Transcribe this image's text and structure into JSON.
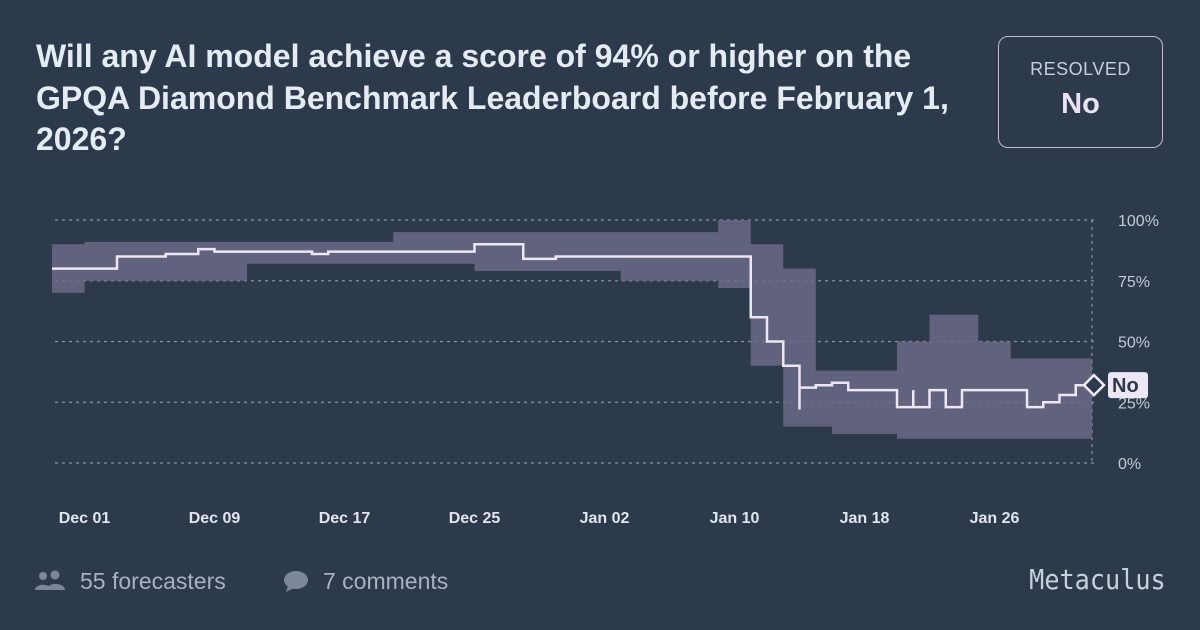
{
  "question": {
    "title": "Will any AI model achieve a score of 94% or higher on the GPQA Diamond Benchmark Leaderboard before February 1, 2026?"
  },
  "status": {
    "label": "RESOLVED",
    "value": "No"
  },
  "footer": {
    "forecasters": "55 forecasters",
    "comments": "7 comments",
    "brand": "Metaculus"
  },
  "colors": {
    "background": "#2c3a4b",
    "band": "#6b6a86",
    "line": "#ece6f5",
    "grid": "#8893a3"
  },
  "chart_data": {
    "type": "line",
    "x_unit": "date",
    "x_range": [
      "2025-11-29",
      "2026-02-01"
    ],
    "ylim": [
      0,
      100
    ],
    "y_ticks": [
      "100%",
      "75%",
      "50%",
      "25%",
      "0%"
    ],
    "y_tick_values": [
      100,
      75,
      50,
      25,
      0
    ],
    "x_ticks": [
      {
        "label": "Dec 01",
        "date": "2025-12-01"
      },
      {
        "label": "Dec 09",
        "date": "2025-12-09"
      },
      {
        "label": "Dec 17",
        "date": "2025-12-17"
      },
      {
        "label": "Dec 25",
        "date": "2025-12-25"
      },
      {
        "label": "Jan 02",
        "date": "2026-01-02"
      },
      {
        "label": "Jan 10",
        "date": "2026-01-10"
      },
      {
        "label": "Jan 18",
        "date": "2026-01-18"
      },
      {
        "label": "Jan 26",
        "date": "2026-01-26"
      }
    ],
    "grid": true,
    "end_marker": "No",
    "series": [
      {
        "points": [
          [
            "2025-11-29",
            80
          ],
          [
            "2025-12-03",
            85
          ],
          [
            "2025-12-06",
            86
          ],
          [
            "2025-12-08",
            88
          ],
          [
            "2025-12-09",
            87
          ],
          [
            "2025-12-12",
            87
          ],
          [
            "2025-12-15",
            86
          ],
          [
            "2025-12-16",
            87
          ],
          [
            "2025-12-22",
            87
          ],
          [
            "2025-12-25",
            90
          ],
          [
            "2025-12-28",
            84
          ],
          [
            "2025-12-30",
            85
          ],
          [
            "2026-01-03",
            85
          ],
          [
            "2026-01-06",
            85
          ],
          [
            "2026-01-10",
            85
          ],
          [
            "2026-01-11",
            85
          ],
          [
            "2026-01-11",
            60
          ],
          [
            "2026-01-12",
            50
          ],
          [
            "2026-01-13",
            40
          ],
          [
            "2026-01-14",
            25
          ],
          [
            "2026-01-14",
            22
          ],
          [
            "2026-01-14",
            31
          ],
          [
            "2026-01-15",
            32
          ],
          [
            "2026-01-16",
            33
          ],
          [
            "2026-01-17",
            30
          ],
          [
            "2026-01-20",
            30
          ],
          [
            "2026-01-20",
            23
          ],
          [
            "2026-01-21",
            30
          ],
          [
            "2026-01-21",
            23
          ],
          [
            "2026-01-22",
            30
          ],
          [
            "2026-01-23",
            23
          ],
          [
            "2026-01-24",
            30
          ],
          [
            "2026-01-28",
            30
          ],
          [
            "2026-01-28",
            23
          ],
          [
            "2026-01-29",
            25
          ],
          [
            "2026-01-30",
            28
          ],
          [
            "2026-01-31",
            32
          ],
          [
            "2026-02-01",
            30
          ]
        ],
        "lower": [
          [
            70,
            "2025-11-29",
            "2025-12-01"
          ],
          [
            75,
            "2025-12-01",
            "2025-12-11"
          ],
          [
            82,
            "2025-12-11",
            "2025-12-25"
          ],
          [
            79,
            "2025-12-25",
            "2026-01-03"
          ],
          [
            75,
            "2026-01-03",
            "2026-01-09"
          ],
          [
            72,
            "2026-01-09",
            "2026-01-11"
          ],
          [
            40,
            "2026-01-11",
            "2026-01-13"
          ],
          [
            15,
            "2026-01-13",
            "2026-01-16"
          ],
          [
            12,
            "2026-01-16",
            "2026-01-20"
          ],
          [
            10,
            "2026-01-20",
            "2026-02-01"
          ]
        ],
        "upper": [
          [
            90,
            "2025-11-29",
            "2025-12-01"
          ],
          [
            91,
            "2025-12-01",
            "2025-12-20"
          ],
          [
            95,
            "2025-12-20",
            "2026-01-06"
          ],
          [
            95,
            "2026-01-06",
            "2026-01-09"
          ],
          [
            100,
            "2026-01-09",
            "2026-01-11"
          ],
          [
            90,
            "2026-01-11",
            "2026-01-13"
          ],
          [
            80,
            "2026-01-13",
            "2026-01-15"
          ],
          [
            38,
            "2026-01-15",
            "2026-01-20"
          ],
          [
            50,
            "2026-01-20",
            "2026-01-22"
          ],
          [
            61,
            "2026-01-22",
            "2026-01-25"
          ],
          [
            50,
            "2026-01-25",
            "2026-01-27"
          ],
          [
            43,
            "2026-01-27",
            "2026-02-01"
          ]
        ]
      }
    ]
  }
}
